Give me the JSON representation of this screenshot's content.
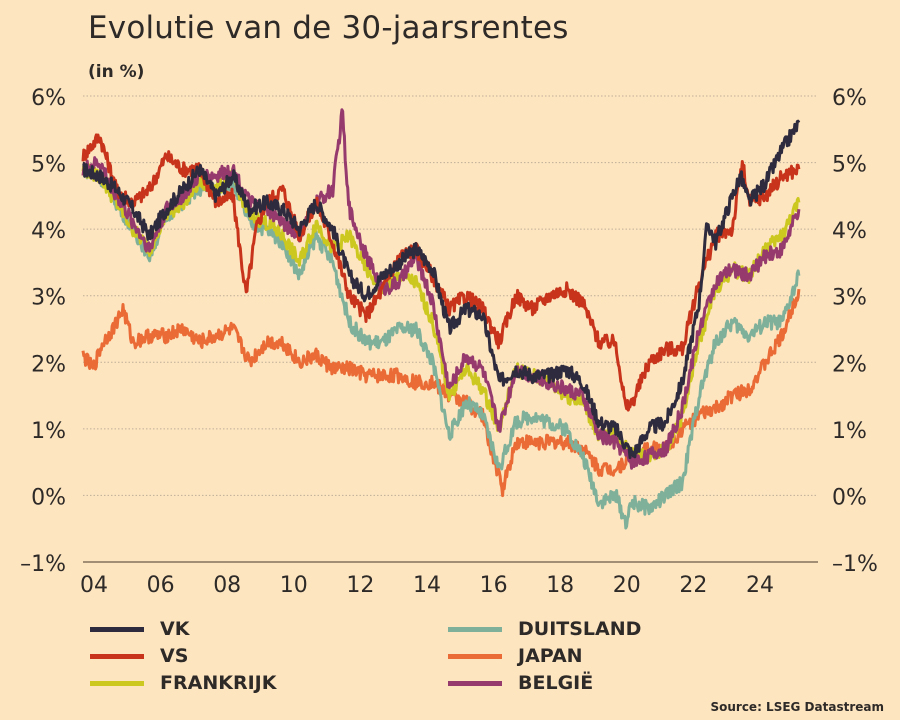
{
  "header": {
    "title": "Evolutie van de 30-jaarsrentes",
    "unit": "(in %)"
  },
  "source": "Source: LSEG Datastream",
  "chart_data": {
    "type": "line",
    "title": "Evolutie van de 30-jaarsrentes",
    "ylabel": "(in %)",
    "xlabel": "",
    "ylim": [
      -1,
      6
    ],
    "xlim": [
      2004,
      2026.1
    ],
    "grid": true,
    "legend_position": "bottom",
    "y_ticks": [
      "6%",
      "5%",
      "4%",
      "3%",
      "2%",
      "1%",
      "0%",
      "–1%"
    ],
    "y_tick_values": [
      6,
      5,
      4,
      3,
      2,
      1,
      0,
      -1
    ],
    "x_ticks": [
      "04",
      "06",
      "08",
      "10",
      "12",
      "14",
      "16",
      "18",
      "20",
      "22",
      "24"
    ],
    "x_tick_values": [
      2004,
      2006,
      2008,
      2010,
      2012,
      2014,
      2016,
      2018,
      2020,
      2022,
      2024
    ],
    "series": [
      {
        "name": "VK",
        "color": "#2f2b3e",
        "x": [
          2004,
          2004.5,
          2005,
          2005.5,
          2006,
          2006.5,
          2007,
          2007.5,
          2008,
          2008.5,
          2009,
          2009.5,
          2010,
          2010.5,
          2011,
          2011.5,
          2012,
          2012.5,
          2013,
          2013.5,
          2014,
          2014.5,
          2015,
          2015.5,
          2016,
          2016.5,
          2017,
          2017.5,
          2018,
          2018.5,
          2019,
          2019.5,
          2020,
          2020.5,
          2021,
          2021.5,
          2022,
          2022.5,
          2022.75,
          2023,
          2023.5,
          2023.75,
          2024,
          2024.5,
          2025,
          2025.5
        ],
        "values": [
          4.9,
          4.8,
          4.6,
          4.3,
          3.9,
          4.3,
          4.6,
          4.9,
          4.5,
          4.8,
          4.3,
          4.4,
          4.3,
          4.0,
          4.4,
          4.0,
          3.3,
          3.0,
          3.3,
          3.5,
          3.7,
          3.4,
          2.5,
          2.8,
          2.7,
          1.7,
          1.9,
          1.8,
          1.8,
          1.9,
          1.7,
          1.1,
          1.0,
          0.6,
          1.0,
          1.1,
          1.7,
          2.9,
          4.1,
          3.8,
          4.5,
          4.8,
          4.4,
          4.7,
          5.2,
          5.6
        ]
      },
      {
        "name": "VS",
        "color": "#c8341b",
        "x": [
          2004,
          2004.5,
          2005,
          2005.5,
          2006,
          2006.5,
          2007,
          2007.5,
          2008,
          2008.5,
          2008.9,
          2009.2,
          2009.5,
          2010,
          2010.5,
          2011,
          2011.5,
          2012,
          2012.5,
          2013,
          2013.5,
          2014,
          2014.5,
          2015,
          2015.5,
          2016,
          2016.5,
          2017,
          2017.5,
          2018,
          2018.5,
          2019,
          2019.5,
          2020,
          2020.3,
          2020.5,
          2021,
          2021.5,
          2022,
          2022.5,
          2023,
          2023.5,
          2023.8,
          2024,
          2024.5,
          2025,
          2025.5
        ],
        "values": [
          5.1,
          5.4,
          4.6,
          4.4,
          4.6,
          5.1,
          4.9,
          4.9,
          4.4,
          4.5,
          3.0,
          4.0,
          4.4,
          4.6,
          3.9,
          4.4,
          3.8,
          3.0,
          2.7,
          3.1,
          3.6,
          3.7,
          3.3,
          2.8,
          3.0,
          2.8,
          2.3,
          3.0,
          2.8,
          3.0,
          3.1,
          2.9,
          2.3,
          2.3,
          1.3,
          1.4,
          2.0,
          2.2,
          2.2,
          3.2,
          3.9,
          4.0,
          5.0,
          4.4,
          4.5,
          4.8,
          4.9
        ]
      },
      {
        "name": "FRANKRIJK",
        "color": "#ccc820",
        "x": [
          2004,
          2004.5,
          2005,
          2005.5,
          2006,
          2006.5,
          2007,
          2007.5,
          2008,
          2008.5,
          2009,
          2009.5,
          2010,
          2010.5,
          2011,
          2011.5,
          2012,
          2012.5,
          2013,
          2013.5,
          2014,
          2014.5,
          2015,
          2015.5,
          2016,
          2016.5,
          2017,
          2017.5,
          2018,
          2018.5,
          2019,
          2019.5,
          2020,
          2020.5,
          2021,
          2021.5,
          2022,
          2022.5,
          2023,
          2023.5,
          2024,
          2024.5,
          2025,
          2025.5
        ],
        "values": [
          4.9,
          4.8,
          4.4,
          4.0,
          3.7,
          4.2,
          4.4,
          4.7,
          4.6,
          4.8,
          4.2,
          4.1,
          3.9,
          3.5,
          4.1,
          3.7,
          3.9,
          3.4,
          3.1,
          3.3,
          3.2,
          2.6,
          1.5,
          1.9,
          1.6,
          1.0,
          1.9,
          1.8,
          1.7,
          1.5,
          1.4,
          0.9,
          0.9,
          0.6,
          0.6,
          0.7,
          1.2,
          2.3,
          3.1,
          3.4,
          3.3,
          3.7,
          3.9,
          4.4
        ]
      },
      {
        "name": "DUITSLAND",
        "color": "#7fb09a",
        "x": [
          2004,
          2004.5,
          2005,
          2005.5,
          2006,
          2006.5,
          2007,
          2007.5,
          2008,
          2008.5,
          2009,
          2009.5,
          2010,
          2010.5,
          2011,
          2011.5,
          2012,
          2012.5,
          2013,
          2013.5,
          2014,
          2014.5,
          2015,
          2015.5,
          2016,
          2016.5,
          2017,
          2017.5,
          2018,
          2018.5,
          2019,
          2019.5,
          2020,
          2020.3,
          2020.5,
          2021,
          2021.5,
          2022,
          2022.5,
          2023,
          2023.5,
          2024,
          2024.5,
          2025,
          2025.5
        ],
        "values": [
          4.9,
          4.8,
          4.4,
          4.0,
          3.6,
          4.2,
          4.4,
          4.6,
          4.6,
          4.7,
          4.1,
          4.0,
          3.8,
          3.3,
          3.9,
          3.5,
          2.6,
          2.3,
          2.3,
          2.5,
          2.5,
          2.0,
          0.9,
          1.4,
          1.2,
          0.4,
          1.1,
          1.2,
          1.1,
          1.0,
          0.6,
          -0.1,
          0.0,
          -0.4,
          -0.1,
          -0.2,
          0.0,
          0.2,
          1.5,
          2.3,
          2.6,
          2.4,
          2.6,
          2.6,
          3.3
        ]
      },
      {
        "name": "JAPAN",
        "color": "#ea6b35",
        "x": [
          2004,
          2004.3,
          2004.6,
          2004.9,
          2005.2,
          2005.5,
          2006,
          2006.5,
          2007,
          2007.5,
          2008,
          2008.5,
          2009,
          2009.5,
          2010,
          2010.5,
          2011,
          2011.5,
          2012,
          2012.5,
          2013,
          2013.5,
          2014,
          2014.5,
          2015,
          2015.5,
          2016,
          2016.3,
          2016.6,
          2017,
          2017.5,
          2018,
          2018.5,
          2019,
          2019.5,
          2020,
          2020.5,
          2021,
          2021.5,
          2022,
          2022.5,
          2023,
          2023.5,
          2024,
          2024.5,
          2025,
          2025.5
        ],
        "values": [
          2.1,
          1.9,
          2.3,
          2.5,
          2.8,
          2.3,
          2.4,
          2.4,
          2.5,
          2.3,
          2.4,
          2.5,
          2.0,
          2.3,
          2.3,
          2.0,
          2.1,
          1.9,
          1.9,
          1.8,
          1.8,
          1.8,
          1.7,
          1.7,
          1.5,
          1.4,
          1.2,
          0.6,
          0.1,
          0.8,
          0.8,
          0.8,
          0.8,
          0.7,
          0.4,
          0.4,
          0.6,
          0.7,
          0.7,
          1.0,
          1.2,
          1.3,
          1.5,
          1.6,
          2.0,
          2.4,
          3.1
        ]
      },
      {
        "name": "BELGIË",
        "color": "#963a6e",
        "x": [
          2004,
          2004.5,
          2005,
          2005.5,
          2006,
          2006.5,
          2007,
          2007.5,
          2008,
          2008.5,
          2009,
          2009.5,
          2010,
          2010.5,
          2011,
          2011.5,
          2011.8,
          2011.9,
          2012,
          2012.5,
          2013,
          2013.5,
          2014,
          2014.5,
          2015,
          2015.5,
          2016,
          2016.5,
          2017,
          2017.5,
          2018,
          2018.5,
          2019,
          2019.5,
          2020,
          2020.5,
          2021,
          2021.5,
          2022,
          2022.5,
          2023,
          2023.5,
          2024,
          2024.5,
          2025,
          2025.5
        ],
        "values": [
          4.9,
          5.0,
          4.5,
          4.1,
          3.7,
          4.3,
          4.5,
          4.8,
          4.8,
          4.9,
          4.4,
          4.3,
          4.1,
          3.9,
          4.4,
          4.6,
          5.8,
          4.8,
          4.3,
          3.6,
          3.1,
          3.2,
          3.6,
          2.9,
          1.6,
          2.1,
          1.9,
          1.0,
          1.9,
          1.8,
          1.7,
          1.6,
          1.5,
          0.9,
          0.8,
          0.5,
          0.6,
          0.7,
          1.3,
          2.5,
          3.2,
          3.4,
          3.3,
          3.6,
          3.7,
          4.3
        ]
      }
    ]
  }
}
